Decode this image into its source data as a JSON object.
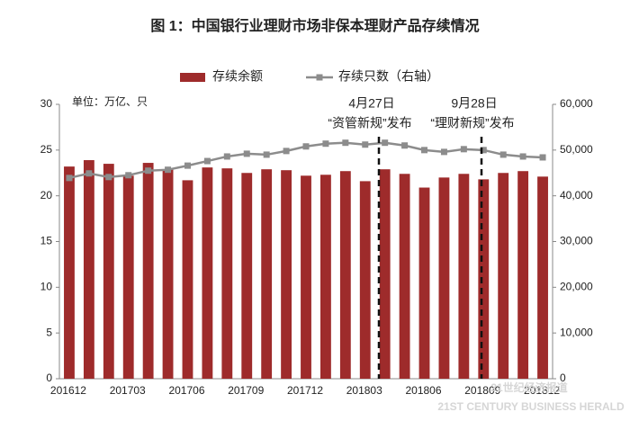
{
  "chart_data": {
    "type": "bar_line",
    "title": "图 1：中国银行业理财市场非保本理财产品存续情况",
    "unit_label": "单位：万亿、只",
    "categories": [
      "201612",
      null,
      null,
      "201703",
      null,
      null,
      "201706",
      null,
      null,
      "201709",
      null,
      null,
      "201712",
      null,
      null,
      "201803",
      null,
      null,
      "201806",
      null,
      null,
      "201809",
      null,
      null,
      "201812"
    ],
    "series": [
      {
        "name": "存续余额",
        "type": "bar",
        "color": "#9e2b2b",
        "axis": "y",
        "values": [
          23.2,
          23.9,
          23.5,
          22.2,
          23.6,
          22.9,
          21.7,
          23.1,
          23.0,
          22.5,
          22.9,
          22.8,
          22.2,
          22.3,
          22.7,
          21.6,
          22.9,
          22.4,
          20.9,
          22.0,
          22.4,
          21.8,
          22.5,
          22.7,
          22.1
        ]
      },
      {
        "name": "存续只数（右轴）",
        "type": "line",
        "color": "#8c8c8c",
        "axis": "y2",
        "values": [
          43900,
          44900,
          44100,
          44500,
          45500,
          45700,
          46600,
          47600,
          48600,
          49200,
          49000,
          49800,
          50800,
          51400,
          51600,
          51200,
          51600,
          51000,
          50000,
          49600,
          50200,
          50000,
          49000,
          48600,
          48400
        ]
      }
    ],
    "ylim": [
      0,
      30
    ],
    "yticks": [
      0,
      5,
      10,
      15,
      20,
      25,
      30
    ],
    "y2lim": [
      0,
      60000
    ],
    "y2ticks": [
      0,
      {
        "value": 10000,
        "label": "10,000"
      },
      {
        "value": 20000,
        "label": "20,000"
      },
      {
        "value": 30000,
        "label": "30,000"
      },
      {
        "value": 40000,
        "label": "40,000"
      },
      {
        "value": 50000,
        "label": "50,000"
      },
      {
        "value": 60000,
        "label": "60,000"
      }
    ],
    "annotations": [
      {
        "date": "4月27日",
        "text": "“资管新规”发布"
      },
      {
        "date": "9月28日",
        "text": "“理财新规”发布"
      }
    ],
    "watermark": {
      "main": "21世纪经济报道",
      "sub": "21ST CENTURY BUSINESS HERALD"
    }
  }
}
